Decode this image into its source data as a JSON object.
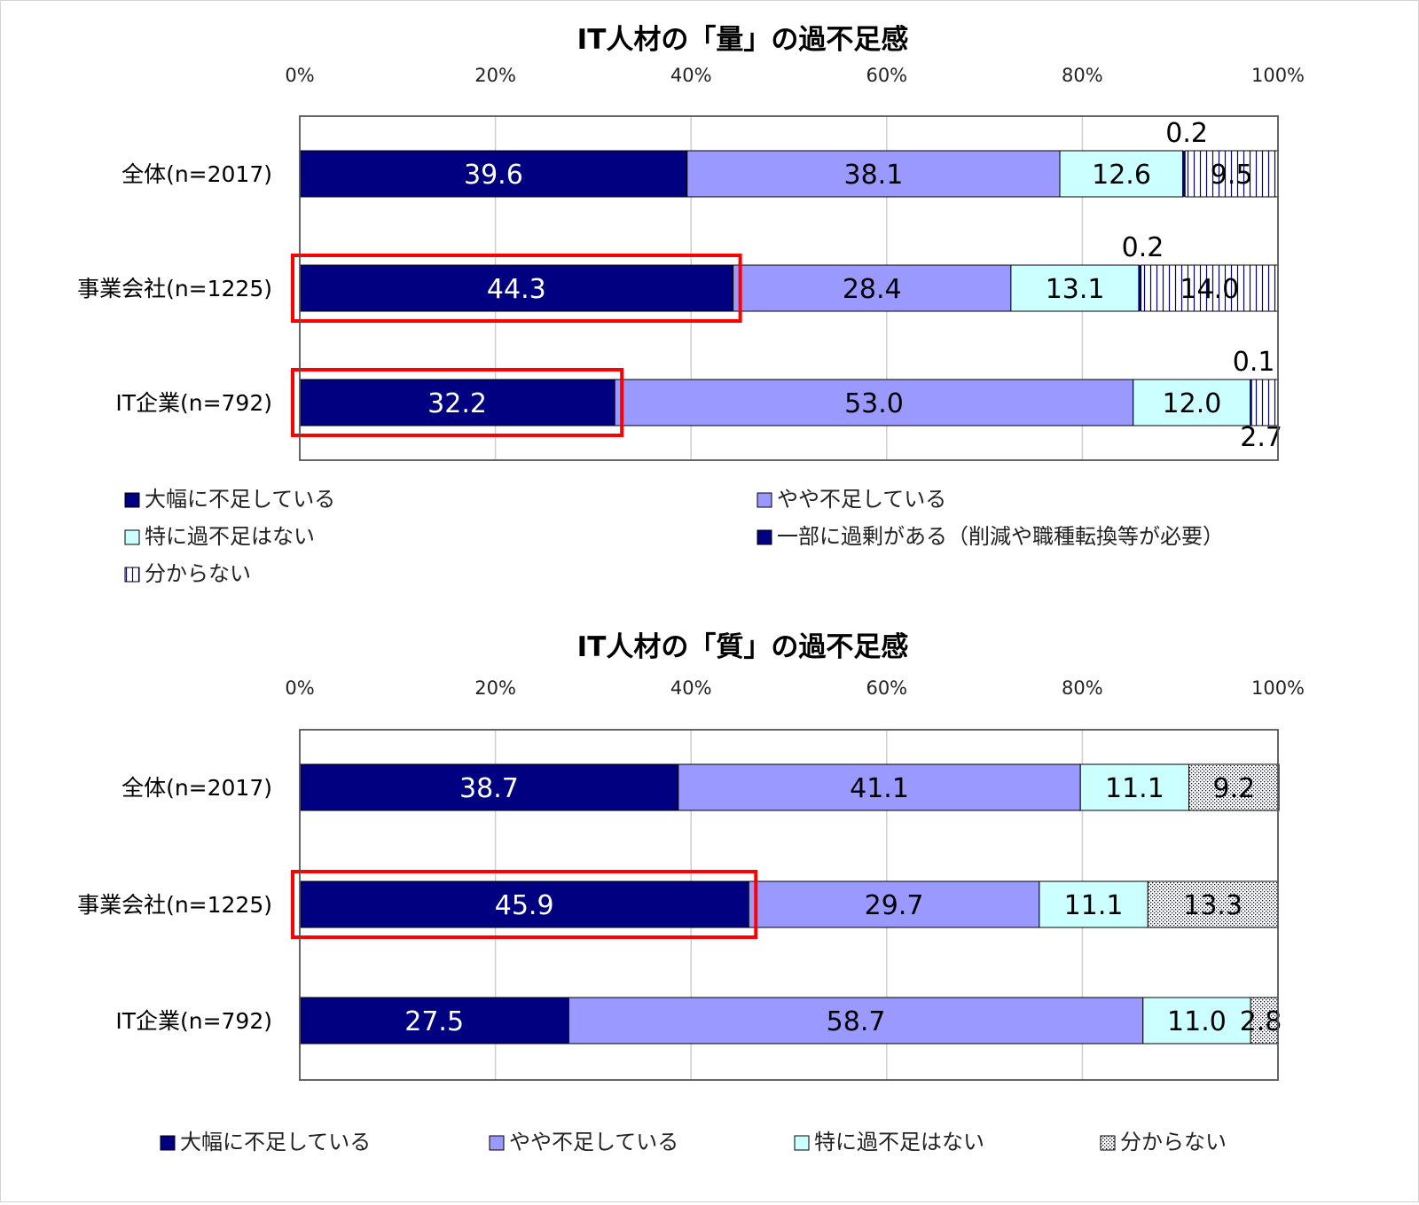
{
  "chart_data": [
    {
      "type": "bar",
      "stacked": true,
      "orientation": "horizontal",
      "title": "IT人材の「量」の過不足感",
      "x_ticks": [
        "0%",
        "20%",
        "40%",
        "60%",
        "80%",
        "100%"
      ],
      "xlim": [
        0,
        100
      ],
      "categories": [
        "全体(n=2017)",
        "事業会社(n=1225)",
        "IT企業(n=792)"
      ],
      "series": [
        {
          "name": "大幅に不足している",
          "values": [
            39.6,
            44.3,
            32.2
          ],
          "labels": [
            "39.6",
            "44.3",
            "32.2"
          ],
          "color": "#000080",
          "label_color": "#ffffff"
        },
        {
          "name": "やや不足している",
          "values": [
            38.1,
            28.4,
            53.0
          ],
          "labels": [
            "38.1",
            "28.4",
            "53.0"
          ],
          "color": "#9999ff",
          "label_color": "#000000"
        },
        {
          "name": "特に過不足はない",
          "values": [
            12.6,
            13.1,
            12.0
          ],
          "labels": [
            "12.6",
            "13.1",
            "12.0"
          ],
          "color": "#ccffff",
          "label_color": "#000000"
        },
        {
          "name": "一部に過剰がある（削減や職種転換等が必要）",
          "values": [
            0.2,
            0.2,
            0.1
          ],
          "labels": [
            "0.2",
            "0.2",
            "0.1"
          ],
          "color": "#000080",
          "label_color": "#000000",
          "label_position": "above"
        },
        {
          "name": "分からない",
          "values": [
            9.5,
            14.0,
            2.7
          ],
          "labels": [
            "9.5",
            "14.0",
            "2.7"
          ],
          "color": "#ffffff",
          "pattern": "vertical-lines",
          "label_color": "#000000"
        }
      ],
      "highlighted": [
        "事業会社(n=1225)|大幅に不足している",
        "IT企業(n=792)|大幅に不足している"
      ],
      "legend_position": "bottom",
      "grid": true
    },
    {
      "type": "bar",
      "stacked": true,
      "orientation": "horizontal",
      "title": "IT人材の「質」の過不足感",
      "x_ticks": [
        "0%",
        "20%",
        "40%",
        "60%",
        "80%",
        "100%"
      ],
      "xlim": [
        0,
        100
      ],
      "categories": [
        "全体(n=2017)",
        "事業会社(n=1225)",
        "IT企業(n=792)"
      ],
      "series": [
        {
          "name": "大幅に不足している",
          "values": [
            38.7,
            45.9,
            27.5
          ],
          "labels": [
            "38.7",
            "45.9",
            "27.5"
          ],
          "color": "#000080",
          "label_color": "#ffffff"
        },
        {
          "name": "やや不足している",
          "values": [
            41.1,
            29.7,
            58.7
          ],
          "labels": [
            "41.1",
            "29.7",
            "58.7"
          ],
          "color": "#9999ff",
          "label_color": "#000000"
        },
        {
          "name": "特に過不足はない",
          "values": [
            11.1,
            11.1,
            11.0
          ],
          "labels": [
            "11.1",
            "11.1",
            "11.0"
          ],
          "color": "#ccffff",
          "label_color": "#000000"
        },
        {
          "name": "分からない",
          "values": [
            9.2,
            13.3,
            2.8
          ],
          "labels": [
            "9.2",
            "13.3",
            "2.8"
          ],
          "color": "#ffffff",
          "pattern": "dots",
          "label_color": "#000000"
        }
      ],
      "highlighted": [
        "事業会社(n=1225)|大幅に不足している"
      ],
      "legend_position": "bottom",
      "grid": true
    }
  ]
}
